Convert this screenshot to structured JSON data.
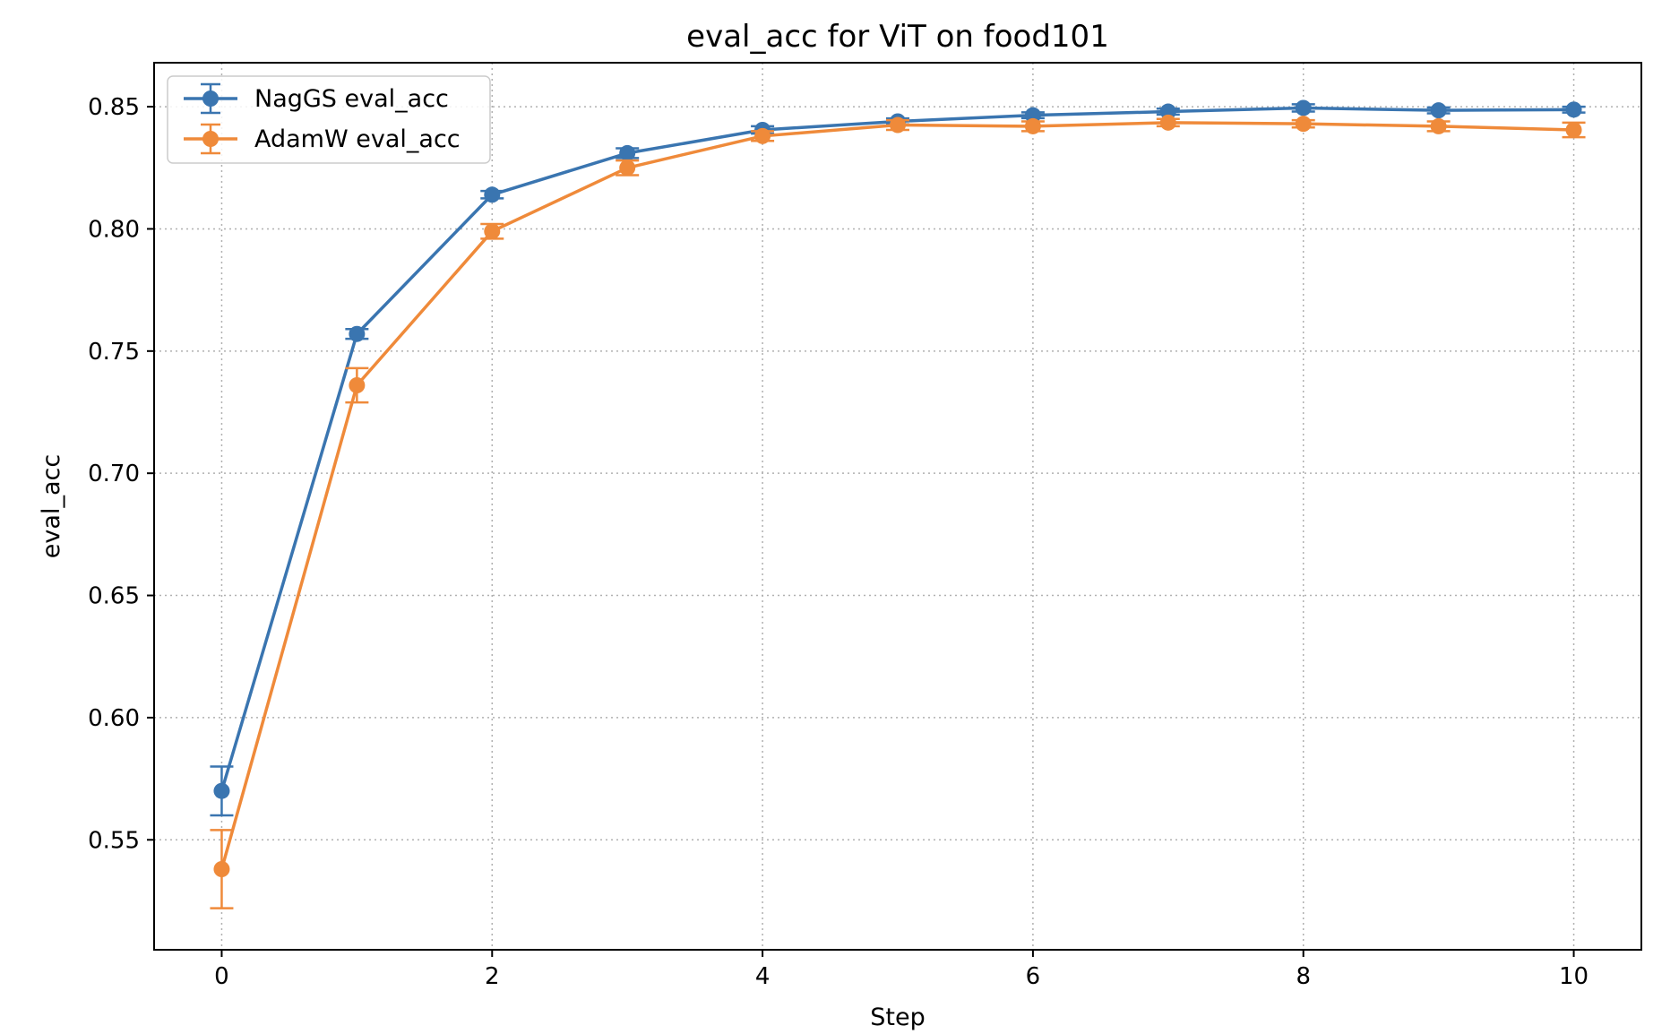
{
  "chart_data": {
    "type": "line",
    "title": "eval_acc for ViT on food101",
    "xlabel": "Step",
    "ylabel": "eval_acc",
    "xlim": [
      -0.5,
      10.5
    ],
    "ylim": [
      0.505,
      0.868
    ],
    "xticks": [
      0,
      2,
      4,
      6,
      8,
      10
    ],
    "yticks": [
      0.55,
      0.6,
      0.65,
      0.7,
      0.75,
      0.8,
      0.85
    ],
    "ytick_labels": [
      "0.55",
      "0.60",
      "0.65",
      "0.70",
      "0.75",
      "0.80",
      "0.85"
    ],
    "grid": true,
    "legend_position": "top-left",
    "x": [
      0,
      1,
      2,
      3,
      4,
      5,
      6,
      7,
      8,
      9,
      10
    ],
    "series": [
      {
        "name": "NagGS eval_acc",
        "color": "#3a75b0",
        "values": [
          0.57,
          0.757,
          0.814,
          0.831,
          0.8405,
          0.844,
          0.8465,
          0.848,
          0.8495,
          0.8485,
          0.8488
        ],
        "errors": [
          0.01,
          0.002,
          0.0015,
          0.002,
          0.0015,
          0.0012,
          0.0012,
          0.0012,
          0.0015,
          0.0012,
          0.0012
        ]
      },
      {
        "name": "AdamW eval_acc",
        "color": "#ef8a3a",
        "values": [
          0.538,
          0.736,
          0.799,
          0.825,
          0.838,
          0.8425,
          0.842,
          0.8435,
          0.843,
          0.842,
          0.8405
        ],
        "errors": [
          0.016,
          0.007,
          0.003,
          0.003,
          0.002,
          0.002,
          0.002,
          0.0015,
          0.0015,
          0.002,
          0.003
        ]
      }
    ]
  }
}
